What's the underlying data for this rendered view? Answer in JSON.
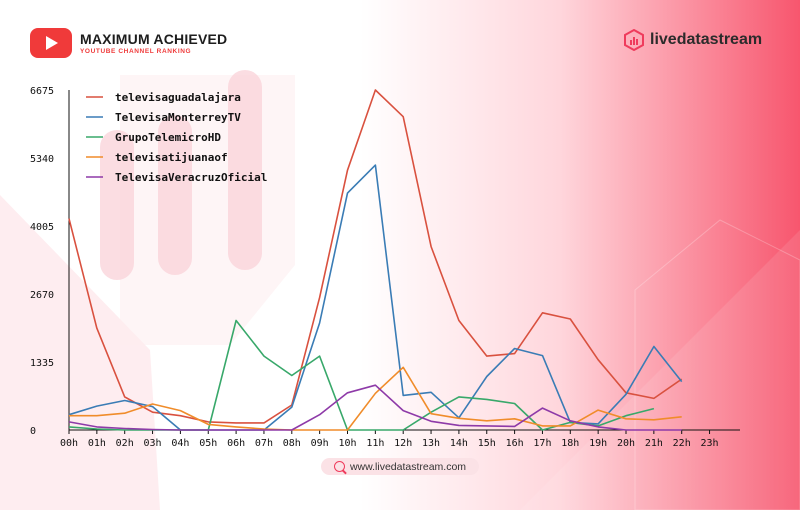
{
  "brand": {
    "title": "MAXIMUM ACHIEVED",
    "subtitle": "YOUTUBE CHANNEL RANKING",
    "partner": "livedatastream"
  },
  "footer": {
    "url": "www.livedatastream.com"
  },
  "colors": {
    "accent": "#ef3b3b"
  },
  "chart_data": {
    "type": "line",
    "categories": [
      "00h",
      "01h",
      "02h",
      "03h",
      "04h",
      "05h",
      "06h",
      "07h",
      "08h",
      "09h",
      "10h",
      "11h",
      "12h",
      "13h",
      "14h",
      "15h",
      "16h",
      "17h",
      "18h",
      "19h",
      "20h",
      "21h",
      "22h",
      "23h"
    ],
    "ylim": [
      0,
      6675
    ],
    "yticks": [
      0,
      1335,
      2670,
      4005,
      5340,
      6675
    ],
    "legend_position": "top-left",
    "series": [
      {
        "name": "televisaguadalajara",
        "color": "#d9513f",
        "values": [
          4150,
          2000,
          650,
          350,
          280,
          160,
          140,
          140,
          490,
          2600,
          5100,
          6675,
          6150,
          3600,
          2150,
          1450,
          1500,
          2300,
          2180,
          1380,
          730,
          620,
          1000,
          null
        ]
      },
      {
        "name": "TelevisaMonterreyTV",
        "color": "#3a7cb5",
        "values": [
          300,
          470,
          580,
          460,
          0,
          0,
          0,
          0,
          450,
          2100,
          4650,
          5200,
          680,
          740,
          240,
          1050,
          1600,
          1460,
          150,
          120,
          700,
          1640,
          950,
          null
        ]
      },
      {
        "name": "GrupoTelemicroHD",
        "color": "#38a86a",
        "values": [
          60,
          20,
          0,
          0,
          0,
          0,
          2150,
          1450,
          1070,
          1450,
          0,
          0,
          0,
          350,
          650,
          600,
          520,
          0,
          150,
          80,
          280,
          420,
          null,
          null
        ]
      },
      {
        "name": "televisatijuanaof",
        "color": "#f08c2a",
        "values": [
          280,
          280,
          330,
          510,
          380,
          110,
          60,
          20,
          0,
          0,
          0,
          720,
          1230,
          320,
          230,
          180,
          220,
          80,
          80,
          390,
          220,
          200,
          260,
          null
        ]
      },
      {
        "name": "TelevisaVeracruzOficial",
        "color": "#8e3aa8",
        "values": [
          160,
          60,
          30,
          10,
          0,
          0,
          0,
          0,
          0,
          300,
          730,
          880,
          380,
          170,
          90,
          80,
          70,
          430,
          180,
          60,
          0,
          0,
          0,
          null
        ]
      }
    ]
  }
}
